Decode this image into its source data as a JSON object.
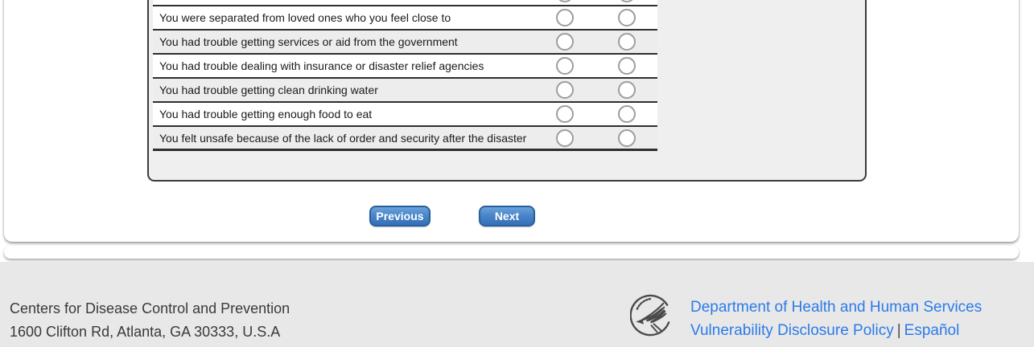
{
  "survey": {
    "clipped_row_label": "",
    "radio_columns": 2,
    "rows": [
      {
        "label": "You were separated from loved ones who you feel close to"
      },
      {
        "label": "You had trouble getting services or aid from the government"
      },
      {
        "label": "You had trouble dealing with insurance or disaster relief agencies"
      },
      {
        "label": "You had trouble getting clean drinking water"
      },
      {
        "label": "You had trouble getting enough food to eat"
      },
      {
        "label": "You felt unsafe because of the lack of order and security after the disaster"
      }
    ]
  },
  "nav": {
    "previous_label": "Previous",
    "next_label": "Next"
  },
  "footer": {
    "org_name": "Centers for Disease Control and Prevention",
    "address": "1600 Clifton Rd, Atlanta, GA 30333, U.S.A",
    "hhs_link": "Department of Health and Human Services",
    "vdp_link": "Vulnerability Disclosure Policy",
    "link_separator": "|",
    "espanol_link": "Español",
    "logo_icon": "hhs-eagle-logo"
  },
  "colors": {
    "button_gradient_top": "#6aa2dc",
    "button_gradient_bottom": "#3470b8",
    "button_border": "#2a5f9e",
    "link_blue": "#2b7bea",
    "footer_bg": "#e8e8e8",
    "footer_text": "#3a3a3a",
    "panel_bg": "#efefef",
    "row_alt_bg": "#ededed",
    "row_separator": "#2e2e2e",
    "radio_border": "#9d9d9d"
  }
}
